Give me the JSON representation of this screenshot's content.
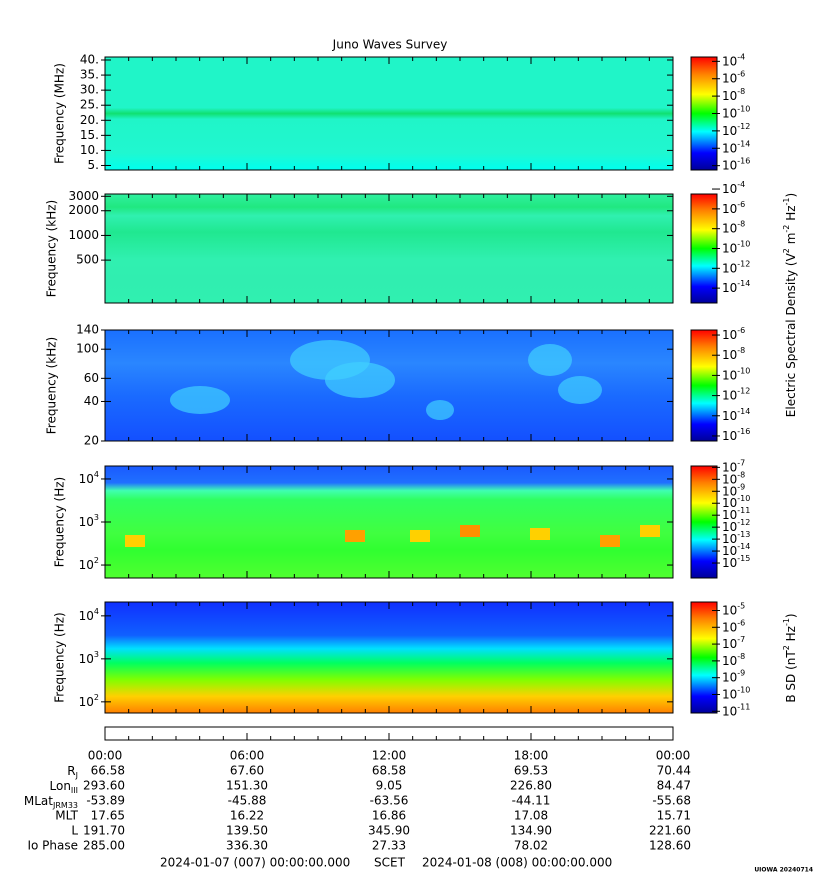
{
  "title": "Juno Waves Survey",
  "charts": [
    {
      "type": "spectrogram",
      "ylabel": "Frequency (MHz)",
      "log": false,
      "ylim": [
        3.5,
        41
      ],
      "yticks": [
        {
          "value": 5,
          "label": "5."
        },
        {
          "value": 10,
          "label": "10."
        },
        {
          "value": 15,
          "label": "15."
        },
        {
          "value": 20,
          "label": "20."
        },
        {
          "value": 25,
          "label": "25."
        },
        {
          "value": 30,
          "label": "30."
        },
        {
          "value": 35,
          "label": "35."
        },
        {
          "value": 40,
          "label": "40."
        }
      ],
      "zlim": [
        3.16e-17,
        0.000316
      ],
      "zticks": [
        {
          "value": 0.0001,
          "label": "10^-4"
        },
        {
          "value": 1e-06,
          "label": "10^-6"
        },
        {
          "value": 1e-08,
          "label": "10^-8"
        },
        {
          "value": 1e-10,
          "label": "10^-10"
        },
        {
          "value": 1e-12,
          "label": "10^-12"
        },
        {
          "value": 1e-14,
          "label": "10^-14"
        },
        {
          "value": 1e-16,
          "label": "10^-16"
        }
      ]
    },
    {
      "type": "spectrogram",
      "ylabel": "Frequency (kHz)",
      "log": true,
      "ylim": [
        150,
        3200
      ],
      "yticks": [
        500,
        1000,
        2000,
        3000
      ],
      "zlim": [
        3.16e-16,
        3.16e-05
      ],
      "zticks": [
        {
          "value": 0.0001,
          "label": "10^-4"
        },
        {
          "value": 1e-06,
          "label": "10^-6"
        },
        {
          "value": 1e-08,
          "label": "10^-8"
        },
        {
          "value": 1e-10,
          "label": "10^-10"
        },
        {
          "value": 1e-12,
          "label": "10^-12"
        },
        {
          "value": 1e-14,
          "label": "10^-14"
        }
      ]
    },
    {
      "type": "spectrogram",
      "ylabel": "Frequency (kHz)",
      "log": true,
      "ylim": [
        20,
        140
      ],
      "yticks": [
        20,
        40,
        60,
        100,
        140
      ],
      "zlim": [
        3.16e-17,
        3.16e-06
      ],
      "zticks": [
        {
          "value": 1e-06,
          "label": "10^-6"
        },
        {
          "value": 1e-08,
          "label": "10^-8"
        },
        {
          "value": 1e-10,
          "label": "10^-10"
        },
        {
          "value": 1e-12,
          "label": "10^-12"
        },
        {
          "value": 1e-14,
          "label": "10^-14"
        },
        {
          "value": 1e-16,
          "label": "10^-16"
        }
      ]
    },
    {
      "type": "spectrogram",
      "ylabel": "Frequency (Hz)",
      "log": true,
      "ylim": [
        50,
        20000
      ],
      "yticks": [
        {
          "value": 100,
          "label": "10^2"
        },
        {
          "value": 1000,
          "label": "10^3"
        },
        {
          "value": 10000,
          "label": "10^4"
        }
      ],
      "zlim": [
        5.6e-17,
        1.3e-07
      ],
      "zticks": [
        {
          "value": 1e-07,
          "label": "10^-7"
        },
        {
          "value": 1e-08,
          "label": "10^-8"
        },
        {
          "value": 1e-09,
          "label": "10^-9"
        },
        {
          "value": 1e-10,
          "label": "10^-10"
        },
        {
          "value": 1e-11,
          "label": "10^-11"
        },
        {
          "value": 1e-12,
          "label": "10^-12"
        },
        {
          "value": 1e-13,
          "label": "10^-13"
        },
        {
          "value": 1e-14,
          "label": "10^-14"
        },
        {
          "value": 1e-15,
          "label": "10^-15"
        }
      ]
    },
    {
      "type": "spectrogram",
      "ylabel": "Frequency (Hz)",
      "log": true,
      "ylim": [
        55,
        21000
      ],
      "yticks": [
        {
          "value": 100,
          "label": "10^2"
        },
        {
          "value": 1000,
          "label": "10^3"
        },
        {
          "value": 10000,
          "label": "10^4"
        }
      ],
      "zlim": [
        7.9e-12,
        3.2e-05
      ],
      "zticks": [
        {
          "value": 1e-05,
          "label": "10^-5"
        },
        {
          "value": 1e-06,
          "label": "10^-6"
        },
        {
          "value": 1e-07,
          "label": "10^-7"
        },
        {
          "value": 1e-08,
          "label": "10^-8"
        },
        {
          "value": 1e-09,
          "label": "10^-9"
        },
        {
          "value": 1e-10,
          "label": "10^-10"
        },
        {
          "value": 1e-11,
          "label": "10^-11"
        }
      ]
    }
  ],
  "electric_label": "Electric Spectral Density (V^2 m^-2 Hz^-1)",
  "magnetic_label": "B SD (nT^2 Hz^-1)",
  "ephemeris": {
    "times": [
      "00:00",
      "06:00",
      "12:00",
      "18:00",
      "00:00"
    ],
    "rows": [
      {
        "label": "R_J",
        "values": [
          "66.58",
          "67.60",
          "68.58",
          "69.53",
          "70.44"
        ]
      },
      {
        "label": "Lon_III",
        "values": [
          "293.60",
          "151.30",
          "9.05",
          "226.80",
          "84.47"
        ]
      },
      {
        "label": "MLat_JRM33",
        "values": [
          "-53.89",
          "-45.88",
          "-63.56",
          "-44.11",
          "-55.68"
        ]
      },
      {
        "label": "MLT",
        "values": [
          "17.65",
          "16.22",
          "16.86",
          "17.08",
          "15.71"
        ]
      },
      {
        "label": "L",
        "values": [
          "191.70",
          "139.50",
          "345.90",
          "134.90",
          "221.60"
        ]
      },
      {
        "label": "Io Phase",
        "values": [
          "285.00",
          "336.30",
          "27.33",
          "78.02",
          "128.60"
        ]
      }
    ]
  },
  "footer": {
    "start": "2024-01-07 (007) 00:00:00.000",
    "frame": "SCET",
    "end": "2024-01-08 (008) 00:00:00.000",
    "credit": "UIOWA 20240714"
  }
}
